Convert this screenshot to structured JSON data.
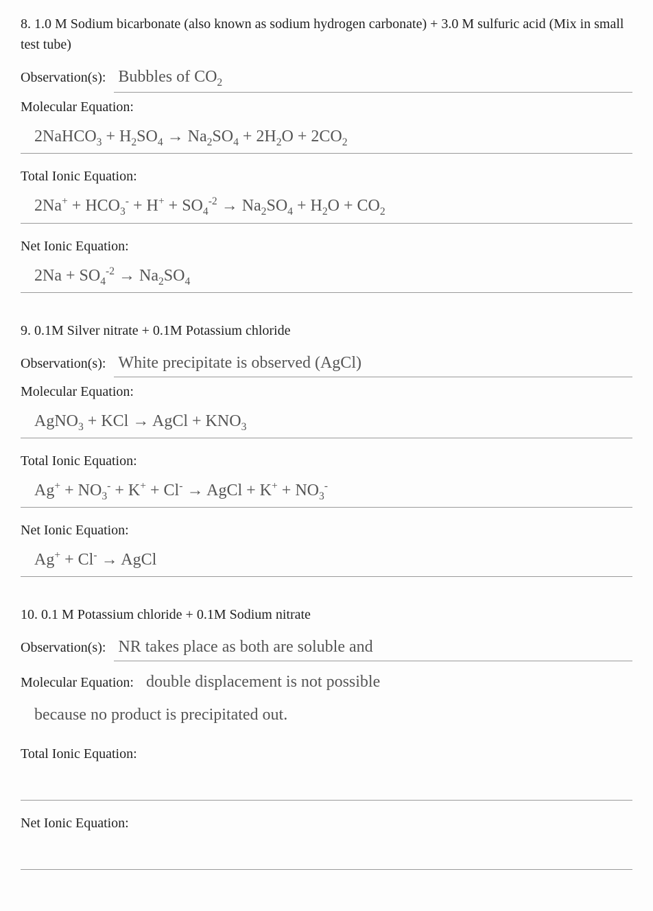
{
  "page": {
    "background_color": "#fdfdfd",
    "text_color": "#222222",
    "hand_color": "#555555",
    "typeface_print": "Georgia, serif",
    "typeface_hand": "Comic Sans MS, Segoe Script, cursive",
    "print_fontsize_pt": 15,
    "hand_fontsize_pt": 18,
    "rule_line_color": "#999999"
  },
  "q8": {
    "number": "8.",
    "prompt": "1.0 M Sodium bicarbonate (also known as sodium hydrogen carbonate) +  3.0 M sulfuric acid (Mix in small test tube)",
    "obs_label": "Observation(s):",
    "obs_value": "Bubbles of CO<sub>2</sub>",
    "mol_label": "Molecular Equation:",
    "mol_value": "2NaHCO<sub>3</sub> + H<sub>2</sub>SO<sub>4</sub> &rarr; Na<sub>2</sub>SO<sub>4</sub> + 2H<sub>2</sub>O + 2CO<sub>2</sub>",
    "tot_label": "Total Ionic Equation:",
    "tot_value": "2Na<sup>+</sup> + HCO<sub>3</sub><sup>-</sup> + H<sup>+</sup> + SO<sub>4</sub><sup>-2</sup> &rarr; Na<sub>2</sub>SO<sub>4</sub> + H<sub>2</sub>O + CO<sub>2</sub>",
    "net_label": "Net Ionic Equation:",
    "net_value": "2Na + SO<sub>4</sub><sup>-2</sup> &rarr; Na<sub>2</sub>SO<sub>4</sub>"
  },
  "q9": {
    "number": "9.",
    "prompt": "0.1M Silver nitrate + 0.1M Potassium chloride",
    "obs_label": "Observation(s):",
    "obs_value": "White precipitate is observed (AgCl)",
    "mol_label": "Molecular Equation:",
    "mol_value": "AgNO<sub>3</sub> + KCl &rarr; AgCl + KNO<sub>3</sub>",
    "tot_label": "Total Ionic Equation:",
    "tot_value": "Ag<sup>+</sup> + NO<sub>3</sub><sup>-</sup> + K<sup>+</sup> + Cl<sup>-</sup> &rarr; AgCl + K<sup>+</sup> + NO<sub>3</sub><sup>-</sup>",
    "net_label": "Net Ionic Equation:",
    "net_value": "Ag<sup>+</sup> + Cl<sup>-</sup> &rarr; AgCl"
  },
  "q10": {
    "number": "10.",
    "prompt": "0.1 M Potassium chloride + 0.1M Sodium nitrate",
    "obs_label": "Observation(s):",
    "obs_value": "NR takes place as both are soluble and",
    "mol_label": "Molecular Equation:",
    "mol_value_line1": "double displacement is not possible",
    "mol_value_line2": "because no product is precipitated out.",
    "tot_label": "Total Ionic Equation:",
    "tot_value": "",
    "net_label": "Net Ionic Equation:",
    "net_value": ""
  }
}
